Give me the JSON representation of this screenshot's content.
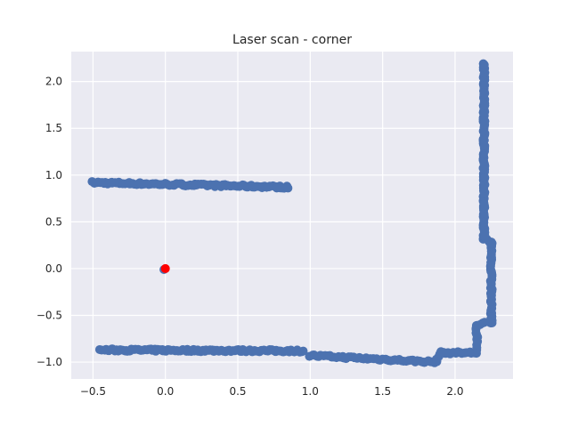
{
  "chart_data": {
    "type": "scatter",
    "title": "Laser scan - corner",
    "xlabel": "",
    "ylabel": "",
    "xlim": [
      -0.65,
      2.4
    ],
    "ylim": [
      -1.18,
      2.32
    ],
    "xticks": [
      -0.5,
      0.0,
      0.5,
      1.0,
      1.5,
      2.0
    ],
    "xtick_labels": [
      "−0.5",
      "0.0",
      "0.5",
      "1.0",
      "1.5",
      "2.0"
    ],
    "yticks": [
      -1.0,
      -0.5,
      0.0,
      0.5,
      1.0,
      1.5,
      2.0
    ],
    "ytick_labels": [
      "−1.0",
      "−0.5",
      "0.0",
      "0.5",
      "1.0",
      "1.5",
      "2.0"
    ],
    "grid": true,
    "background": "#EAEAF2",
    "series": [
      {
        "color": "#4C72B0",
        "segments": [
          {
            "from": [
              -0.5,
              0.92
            ],
            "to": [
              0.85,
              0.87
            ],
            "n": 110
          },
          {
            "from": [
              -0.45,
              -0.87
            ],
            "to": [
              0.95,
              -0.88
            ],
            "n": 110
          },
          {
            "from": [
              1.0,
              -0.93
            ],
            "to": [
              1.87,
              -1.0
            ],
            "n": 60
          },
          {
            "from": [
              1.87,
              -0.98
            ],
            "to": [
              1.9,
              -0.9
            ],
            "n": 5
          },
          {
            "from": [
              1.9,
              -0.9
            ],
            "to": [
              2.15,
              -0.9
            ],
            "n": 16
          },
          {
            "from": [
              2.15,
              -0.9
            ],
            "to": [
              2.15,
              -0.6
            ],
            "n": 12
          },
          {
            "from": [
              2.15,
              -0.6
            ],
            "to": [
              2.25,
              -0.57
            ],
            "n": 6
          },
          {
            "from": [
              2.25,
              -0.57
            ],
            "to": [
              2.25,
              0.28
            ],
            "n": 50
          },
          {
            "from": [
              2.25,
              0.28
            ],
            "to": [
              2.2,
              0.32
            ],
            "n": 4
          },
          {
            "from": [
              2.2,
              0.32
            ],
            "to": [
              2.2,
              2.2
            ],
            "n": 120
          }
        ],
        "points": [
          [
            -0.01,
            -0.01
          ]
        ]
      },
      {
        "color": "#FF0000",
        "points": [
          [
            0.0,
            0.0
          ]
        ]
      }
    ]
  }
}
